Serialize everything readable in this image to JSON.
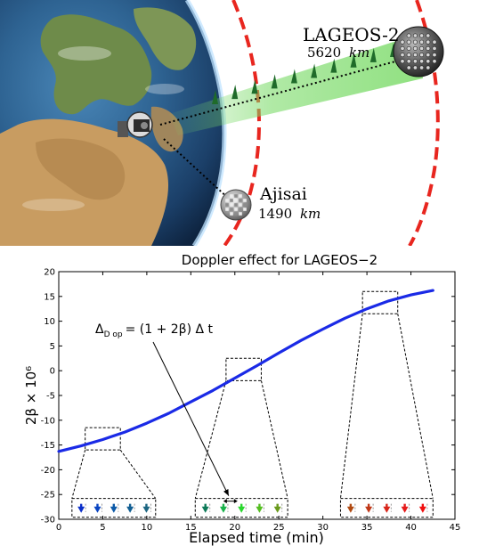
{
  "illustration": {
    "satellites": [
      {
        "name": "LAGEOS-2",
        "altitude_value": "5620",
        "altitude_unit": "km"
      },
      {
        "name": "Ajisai",
        "altitude_value": "1490",
        "altitude_unit": "km"
      }
    ],
    "colors": {
      "orbit_lageos": "#e8261f",
      "orbit_ajisai": "#e8261f",
      "laser_beam": "#7cdb6a",
      "pulse_marks": "#1f6b2a"
    },
    "icons": [
      "earth-globe",
      "laser-ranging-station",
      "lageos-sphere",
      "ajisai-sphere"
    ]
  },
  "chart_data": {
    "type": "line",
    "title": "Doppler effect for LAGEOS−2",
    "xlabel": "Elapsed time (min)",
    "ylabel": "2β × 10⁶",
    "xlim": [
      0,
      45
    ],
    "ylim": [
      -30,
      20
    ],
    "xticks": [
      0,
      5,
      10,
      15,
      20,
      25,
      30,
      35,
      40,
      45
    ],
    "yticks": [
      -30,
      -25,
      -20,
      -15,
      -10,
      -5,
      0,
      5,
      10,
      15,
      20
    ],
    "grid": false,
    "series": [
      {
        "color": "#1a2ae6",
        "x": [
          0,
          2.5,
          5,
          7.5,
          10,
          12.5,
          15,
          17.5,
          20,
          22.5,
          25,
          27.5,
          30,
          32.5,
          35,
          37.5,
          40,
          42.5
        ],
        "y": [
          -16.3,
          -15.2,
          -13.9,
          -12.4,
          -10.6,
          -8.6,
          -6.3,
          -4.0,
          -1.5,
          1.0,
          3.6,
          6.1,
          8.4,
          10.6,
          12.5,
          14.1,
          15.3,
          16.2
        ]
      }
    ],
    "annotation": {
      "text": "Δ_Dop = (1 + 2β) Δ t",
      "label_main": "Δ",
      "label_sub": "D op",
      "label_rest": "= (1 + 2β) Δ t",
      "points_to": {
        "x": 19.5,
        "y": -26.7
      }
    },
    "zoom_windows": [
      {
        "center": {
          "x": 5,
          "y": -14
        },
        "arrow_colors": [
          "#0b2fc9",
          "#0a45c2",
          "#0d5aa8",
          "#125f93",
          "#1d6682"
        ]
      },
      {
        "center": {
          "x": 21,
          "y": 0
        },
        "arrow_colors": [
          "#0d7a58",
          "#18b24a",
          "#2ad72e",
          "#55be22",
          "#6a9a1c"
        ]
      },
      {
        "center": {
          "x": 36.5,
          "y": 13.5
        },
        "arrow_colors": [
          "#b04a12",
          "#c03818",
          "#d8261a",
          "#e51b1b",
          "#f00f0f"
        ]
      }
    ]
  }
}
